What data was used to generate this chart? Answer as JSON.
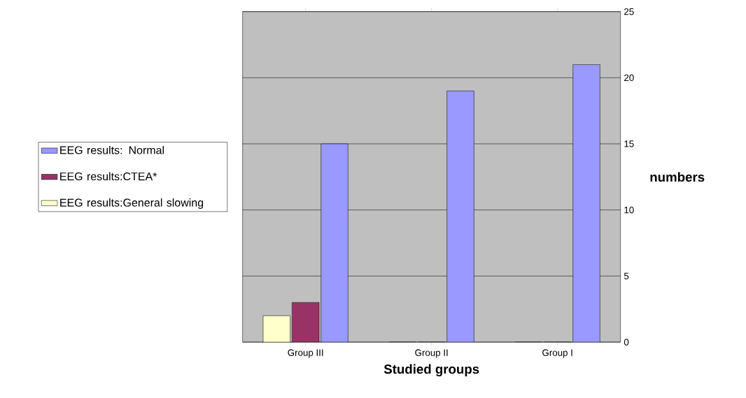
{
  "chart_data": {
    "type": "bar",
    "xlabel": "Studied groups",
    "ylabel": "numbers",
    "categories": [
      "Group III",
      "Group II",
      "Group I"
    ],
    "series": [
      {
        "name": "EEG results: Normal",
        "color": "#9999ff",
        "values": [
          15,
          19,
          21
        ]
      },
      {
        "name": "EEG results:CTEA*",
        "color": "#993366",
        "values": [
          3,
          0,
          0
        ]
      },
      {
        "name": "EEG results:General slowing",
        "color": "#ffffcc",
        "values": [
          2,
          0,
          0
        ]
      }
    ],
    "ylim": [
      0,
      25
    ],
    "yticks": [
      0,
      5,
      10,
      15,
      20,
      25
    ],
    "grid": "y",
    "legend": "left"
  }
}
